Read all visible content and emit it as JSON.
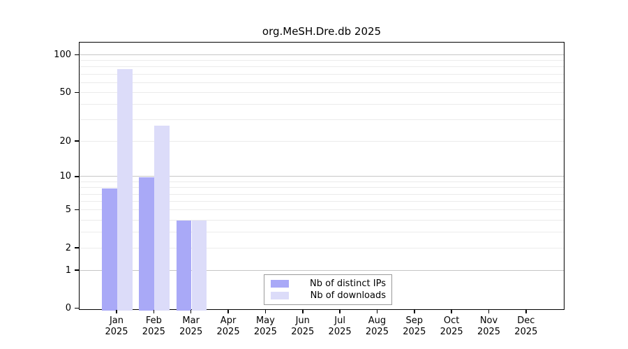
{
  "title": "org.MeSH.Dre.db 2025",
  "chart_data": {
    "type": "bar",
    "title": "org.MeSH.Dre.db 2025",
    "scale": "log1p",
    "categories": [
      "Jan",
      "Feb",
      "Mar",
      "Apr",
      "May",
      "Jun",
      "Jul",
      "Aug",
      "Sep",
      "Oct",
      "Nov",
      "Dec"
    ],
    "year": "2025",
    "series": [
      {
        "name": "Nb of distinct IPs",
        "color": "#a9a9f7",
        "values": [
          8,
          10,
          4,
          0,
          0,
          0,
          0,
          0,
          0,
          0,
          0,
          0
        ]
      },
      {
        "name": "Nb of downloads",
        "color": "#dcdcf9",
        "values": [
          78,
          27,
          4,
          0,
          0,
          0,
          0,
          0,
          0,
          0,
          0,
          0
        ]
      }
    ],
    "xlabel": "",
    "ylabel": "",
    "ylim": [
      0,
      110
    ],
    "y_ticks": [
      0,
      1,
      2,
      5,
      10,
      20,
      50,
      100
    ],
    "grid_minor": [
      2,
      3,
      4,
      5,
      6,
      7,
      8,
      9,
      20,
      30,
      40,
      50,
      60,
      70,
      80,
      90
    ],
    "grid_major": [
      1,
      10,
      100
    ],
    "grid_minor_color": "#ebebeb",
    "grid_major_color": "#c6c6c6",
    "legend_position": "bottom-center-inside"
  },
  "legend": {
    "items": [
      {
        "label": "Nb of distinct IPs",
        "color": "#a9a9f7"
      },
      {
        "label": "Nb of downloads",
        "color": "#dcdcf9"
      }
    ]
  }
}
